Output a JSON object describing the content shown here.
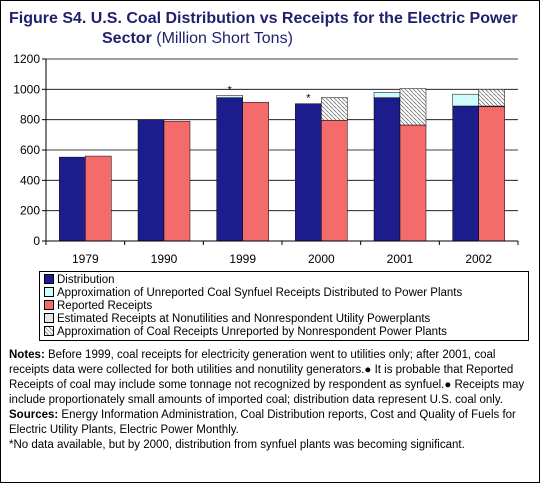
{
  "header": {
    "title_line1": "Figure S4. U.S. Coal Distribution vs Receipts for the Electric Power",
    "title_line2": "Sector",
    "title_units": "(Million Short Tons)"
  },
  "chart_data": {
    "type": "bar",
    "categories": [
      "1979",
      "1990",
      "1999",
      "2000",
      "2001",
      "2002"
    ],
    "ylim": [
      0,
      1200
    ],
    "yticks": [
      "0",
      "200",
      "400",
      "600",
      "800",
      "1000",
      "1200"
    ],
    "grid": true,
    "distribution_stack": [
      {
        "key": "distribution",
        "values": [
          553,
          800,
          945,
          905,
          945,
          890
        ]
      },
      {
        "key": "synfuel",
        "values": [
          0,
          0,
          15,
          0,
          35,
          78
        ]
      }
    ],
    "receipts_stack": [
      {
        "key": "reported",
        "values": [
          560,
          790,
          915,
          795,
          765,
          885
        ]
      },
      {
        "key": "estimated",
        "values": [
          0,
          0,
          0,
          0,
          0,
          5
        ]
      },
      {
        "key": "nonrespondent",
        "values": [
          0,
          0,
          0,
          150,
          240,
          110
        ]
      }
    ],
    "asterisk_categories": [
      "1999",
      "2000"
    ],
    "asterisk": "*",
    "colors": {
      "distribution": "#1c1c8c",
      "synfuel": "#cffcfc",
      "reported": "#f36b6b",
      "estimated": "#e6e6e6",
      "nonrespondent": "#ffffff",
      "plot_bg": "#ffffff"
    }
  },
  "legend": {
    "items": [
      {
        "key": "distribution",
        "label": "Distribution"
      },
      {
        "key": "synfuel",
        "label": "Approximation of Unreported Coal Synfuel Receipts Distributed to Power Plants"
      },
      {
        "key": "reported",
        "label": "Reported Receipts"
      },
      {
        "key": "estimated",
        "label": "Estimated Receipts at Nonutilities and Nonrespondent Utility Powerplants"
      },
      {
        "key": "nonrespondent",
        "label": "Approximation of Coal Receipts Unreported by Nonrespondent Power Plants"
      }
    ]
  },
  "notes": {
    "notes_label": "Notes:",
    "notes_text": "Before 1999, coal receipts for electricity generation went to utilities only; after 2001, coal receipts data were collected for both utilities and nonutility generators.● It is probable that Reported Receipts of coal may include some tonnage not recognized by respondent as synfuel.● Receipts may include proportionately small amounts of imported coal; distribution data represent U.S. coal only.",
    "sources_label": "Sources:",
    "sources_text": "Energy Information Administration, Coal Distribution reports, Cost and Quality of Fuels for Electric Utility Plants, Electric Power Monthly.",
    "footnote": "*No data available, but by 2000, distribution from synfuel plants was becoming significant."
  }
}
